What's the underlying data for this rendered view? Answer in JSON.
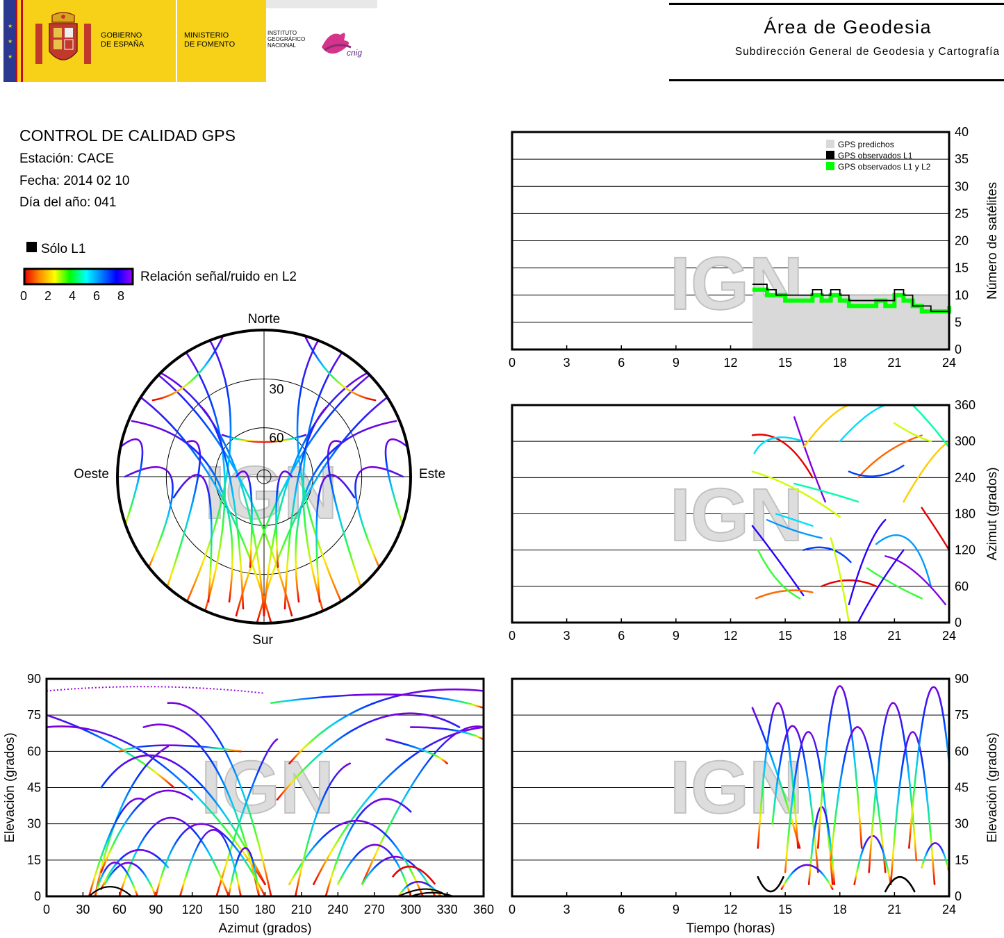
{
  "header": {
    "gov_line1": "GOBIERNO",
    "gov_line2": "DE ESPAÑA",
    "min_line1": "MINISTERIO",
    "min_line2": "DE FOMENTO",
    "inst_line1": "INSTITUTO",
    "inst_line2": "GEOGRÁFICO",
    "inst_line3": "NACIONAL",
    "cnig": "cnig",
    "area_title": "Área de Geodesia",
    "area_subtitle": "Subdirección General de Geodesia y Cartografía"
  },
  "info": {
    "title": "CONTROL DE CALIDAD GPS",
    "station": "Estación: CACE",
    "date": "Fecha: 2014 02 10",
    "doy": "Día del año: 041",
    "legend_l1": "Sólo L1",
    "legend_snr": "Relación señal/ruido en L2",
    "snr_ticks": [
      "0",
      "2",
      "4",
      "6",
      "8"
    ]
  },
  "watermark": "IGN",
  "colors": {
    "l1_only": "#000000",
    "predicted": "#d9d9d9",
    "observed_l1l2": "#00ff00",
    "grid": "#000000"
  },
  "chart_data": [
    {
      "type": "line",
      "id": "satellites",
      "ylabel": "Número de satélites",
      "xlim": [
        0,
        24
      ],
      "ylim": [
        0,
        40
      ],
      "x_ticks": [
        "0",
        "3",
        "6",
        "9",
        "12",
        "15",
        "18",
        "21",
        "24"
      ],
      "y_ticks": [
        "0",
        "5",
        "10",
        "15",
        "20",
        "25",
        "30",
        "35",
        "40"
      ],
      "legend": [
        "GPS predichos",
        "GPS observados L1",
        "GPS observados L1 y L2"
      ],
      "legend_position": "top-right",
      "series": [
        {
          "name": "GPS predichos",
          "x": [
            13.2,
            24
          ],
          "y": [
            10,
            10
          ]
        },
        {
          "name": "GPS observados L1",
          "x": [
            13.2,
            13.5,
            14.0,
            14.5,
            15.0,
            15.5,
            16.0,
            16.5,
            17.0,
            17.5,
            18.0,
            18.5,
            19.0,
            19.5,
            20.0,
            20.5,
            21.0,
            21.5,
            22.0,
            22.5,
            23.0,
            23.5,
            24.0
          ],
          "y": [
            12,
            12,
            11,
            10,
            10,
            10,
            10,
            11,
            10,
            11,
            10,
            9,
            9,
            9,
            9,
            9,
            11,
            10,
            8,
            8,
            7,
            7,
            9
          ]
        },
        {
          "name": "GPS observados L1 y L2",
          "x": [
            13.2,
            13.5,
            14.0,
            14.5,
            15.0,
            15.5,
            16.0,
            16.5,
            17.0,
            17.5,
            18.0,
            18.5,
            19.0,
            19.5,
            20.0,
            20.5,
            21.0,
            21.5,
            22.0,
            22.5,
            23.0,
            23.5,
            24.0
          ],
          "y": [
            11,
            11,
            10,
            10,
            9,
            9,
            9,
            10,
            9,
            10,
            9,
            8,
            8,
            8,
            9,
            8,
            10,
            9,
            8,
            7,
            7,
            7,
            8
          ]
        }
      ]
    },
    {
      "type": "scatter",
      "id": "azimuth-time",
      "ylabel": "Azimut (grados)",
      "xlim": [
        0,
        24
      ],
      "ylim": [
        0,
        360
      ],
      "x_ticks": [
        "0",
        "3",
        "6",
        "9",
        "12",
        "15",
        "18",
        "21",
        "24"
      ],
      "y_ticks": [
        "0",
        "60",
        "120",
        "180",
        "240",
        "300",
        "360"
      ]
    },
    {
      "type": "scatter",
      "id": "skyplot",
      "direction_labels": {
        "north": "Norte",
        "south": "Sur",
        "east": "Este",
        "west": "Oeste"
      },
      "ring_labels": [
        "30",
        "60"
      ]
    },
    {
      "type": "scatter",
      "id": "elev-azimuth",
      "xlabel": "Azimut (grados)",
      "ylabel": "Elevación (grados)",
      "xlim": [
        0,
        360
      ],
      "ylim": [
        0,
        90
      ],
      "x_ticks": [
        "0",
        "30",
        "60",
        "90",
        "120",
        "150",
        "180",
        "210",
        "240",
        "270",
        "300",
        "330",
        "360"
      ],
      "y_ticks": [
        "0",
        "15",
        "30",
        "45",
        "60",
        "75",
        "90"
      ]
    },
    {
      "type": "line",
      "id": "elev-time",
      "xlabel": "Tiempo (horas)",
      "ylabel": "Elevación (grados)",
      "xlim": [
        0,
        24
      ],
      "ylim": [
        0,
        90
      ],
      "x_ticks": [
        "0",
        "3",
        "6",
        "9",
        "12",
        "15",
        "18",
        "21",
        "24"
      ],
      "y_ticks": [
        "0",
        "15",
        "30",
        "45",
        "60",
        "75",
        "90"
      ],
      "series": [
        {
          "x": [
            13.2,
            14.5,
            15.8
          ],
          "y": [
            78,
            52,
            20
          ]
        },
        {
          "x": [
            13.5,
            14.6,
            15.7
          ],
          "y": [
            20,
            80,
            20
          ]
        },
        {
          "x": [
            14.3,
            15.5,
            16.8
          ],
          "y": [
            30,
            70,
            10
          ]
        },
        {
          "x": [
            15.0,
            16.3,
            17.6
          ],
          "y": [
            10,
            68,
            5
          ]
        },
        {
          "x": [
            16.3,
            17.0,
            17.7
          ],
          "y": [
            5,
            37,
            5
          ]
        },
        {
          "x": [
            16.8,
            18.0,
            19.2
          ],
          "y": [
            20,
            87,
            20
          ]
        },
        {
          "x": [
            17.5,
            19.0,
            20.5
          ],
          "y": [
            15,
            70,
            10
          ]
        },
        {
          "x": [
            18.8,
            19.8,
            20.8
          ],
          "y": [
            5,
            25,
            5
          ]
        },
        {
          "x": [
            19.6,
            20.9,
            22.2
          ],
          "y": [
            10,
            80,
            15
          ]
        },
        {
          "x": [
            20.8,
            22.0,
            23.2
          ],
          "y": [
            5,
            68,
            5
          ]
        },
        {
          "x": [
            21.8,
            23.0,
            24.0
          ],
          "y": [
            20,
            85,
            55
          ]
        },
        {
          "x": [
            14.8,
            16.2,
            17.6
          ],
          "y": [
            3,
            13,
            3
          ]
        },
        {
          "x": [
            13.5,
            14.2,
            14.9
          ],
          "y": [
            8,
            2,
            8
          ]
        },
        {
          "x": [
            20.5,
            21.3,
            22.1
          ],
          "y": [
            2,
            8,
            2
          ]
        },
        {
          "x": [
            22.5,
            23.3,
            24.0
          ],
          "y": [
            12,
            22,
            10
          ]
        }
      ]
    }
  ]
}
